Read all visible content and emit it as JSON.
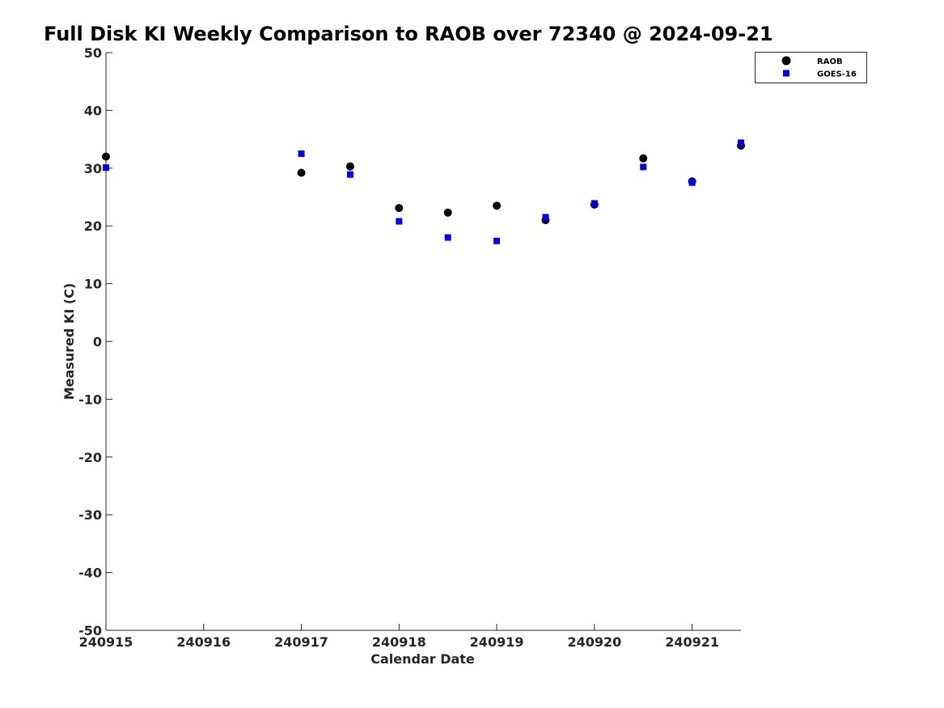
{
  "chart_data": {
    "type": "scatter",
    "title": "Full Disk KI Weekly Comparison to RAOB over 72340 @ 2024-09-21",
    "xlabel": "Calendar Date",
    "ylabel": "Measured KI (C)",
    "xlim": [
      "2024-09-15",
      "2024-09-21 12:00"
    ],
    "ylim": [
      -50,
      50
    ],
    "xtick_labels": [
      "240915",
      "240916",
      "240917",
      "240918",
      "240919",
      "240920",
      "240921"
    ],
    "ytick_labels": [
      "50",
      "40",
      "30",
      "20",
      "10",
      "0",
      "-10",
      "-20",
      "-30",
      "-40",
      "-50"
    ],
    "grid": false,
    "legend_position": "top-right",
    "series": [
      {
        "name": "RAOB",
        "marker": "circle",
        "color": "#000000",
        "points": [
          {
            "x": "2024-09-15 00:00",
            "y": 32.0
          },
          {
            "x": "2024-09-17 00:00",
            "y": 29.2
          },
          {
            "x": "2024-09-17 12:00",
            "y": 30.3
          },
          {
            "x": "2024-09-18 00:00",
            "y": 23.1
          },
          {
            "x": "2024-09-18 12:00",
            "y": 22.3
          },
          {
            "x": "2024-09-19 00:00",
            "y": 23.5
          },
          {
            "x": "2024-09-19 12:00",
            "y": 21.0
          },
          {
            "x": "2024-09-20 00:00",
            "y": 23.7
          },
          {
            "x": "2024-09-20 12:00",
            "y": 31.7
          },
          {
            "x": "2024-09-21 00:00",
            "y": 27.7
          },
          {
            "x": "2024-09-21 12:00",
            "y": 33.9
          }
        ]
      },
      {
        "name": "GOES-16",
        "marker": "square",
        "color": "#0000ff",
        "points": [
          {
            "x": "2024-09-15 00:00",
            "y": 30.1
          },
          {
            "x": "2024-09-17 00:00",
            "y": 32.5
          },
          {
            "x": "2024-09-17 12:00",
            "y": 28.9
          },
          {
            "x": "2024-09-18 00:00",
            "y": 20.8
          },
          {
            "x": "2024-09-18 12:00",
            "y": 18.0
          },
          {
            "x": "2024-09-19 00:00",
            "y": 17.4
          },
          {
            "x": "2024-09-19 12:00",
            "y": 21.5
          },
          {
            "x": "2024-09-20 00:00",
            "y": 23.9
          },
          {
            "x": "2024-09-20 12:00",
            "y": 30.2
          },
          {
            "x": "2024-09-21 00:00",
            "y": 27.5
          },
          {
            "x": "2024-09-21 12:00",
            "y": 34.4
          }
        ]
      }
    ]
  }
}
